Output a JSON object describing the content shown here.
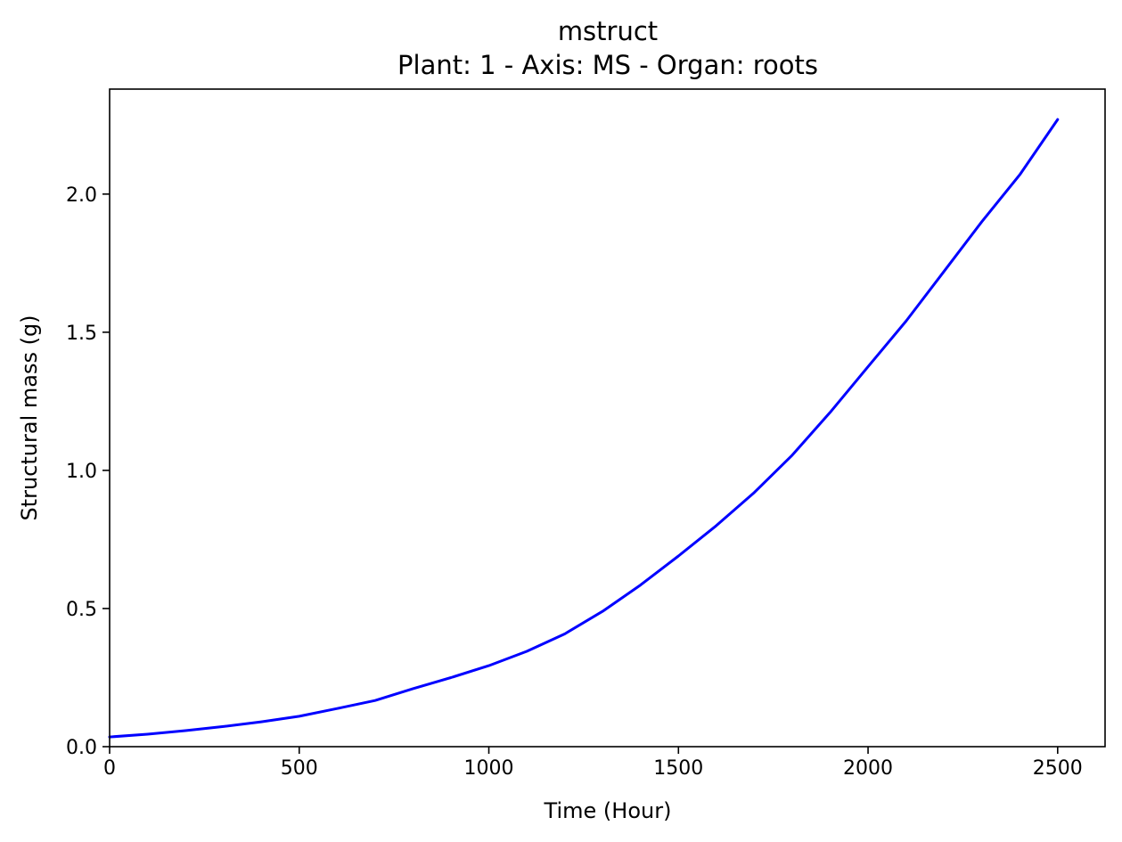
{
  "chart_data": {
    "type": "line",
    "title": "mstruct",
    "subtitle": "Plant: 1 - Axis: MS - Organ: roots",
    "xlabel": "Time (Hour)",
    "ylabel": "Structural mass (g)",
    "xlim": [
      0,
      2625
    ],
    "ylim": [
      0,
      2.38
    ],
    "xticks": [
      0,
      500,
      1000,
      1500,
      2000,
      2500
    ],
    "xtick_labels": [
      "0",
      "500",
      "1000",
      "1500",
      "2000",
      "2500"
    ],
    "yticks": [
      0.0,
      0.5,
      1.0,
      1.5,
      2.0
    ],
    "ytick_labels": [
      "0.0",
      "0.5",
      "1.0",
      "1.5",
      "2.0"
    ],
    "grid": false,
    "series": [
      {
        "color": "#0000ff",
        "x": [
          0,
          100,
          200,
          300,
          400,
          500,
          600,
          700,
          800,
          900,
          1000,
          1100,
          1200,
          1300,
          1400,
          1500,
          1600,
          1700,
          1800,
          1900,
          2000,
          2100,
          2200,
          2300,
          2400,
          2500
        ],
        "y": [
          0.035,
          0.045,
          0.058,
          0.073,
          0.09,
          0.11,
          0.138,
          0.167,
          0.21,
          0.25,
          0.293,
          0.345,
          0.408,
          0.49,
          0.585,
          0.69,
          0.8,
          0.92,
          1.055,
          1.21,
          1.375,
          1.54,
          1.72,
          1.9,
          2.07,
          2.27
        ]
      }
    ]
  }
}
